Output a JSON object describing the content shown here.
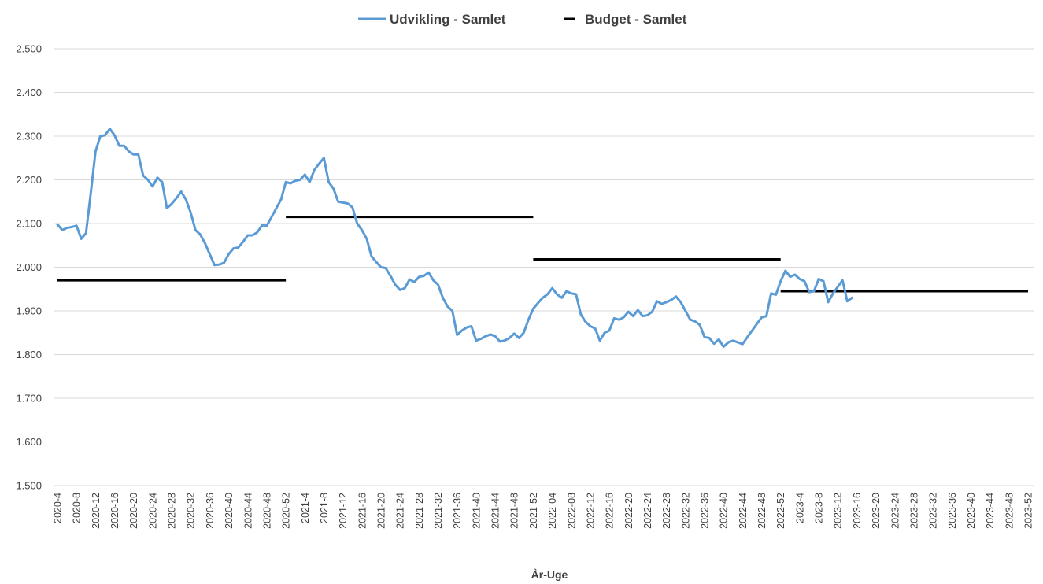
{
  "chart_data": {
    "type": "line",
    "title": "",
    "xlabel": "År-Uge",
    "ylabel": "",
    "ylim": [
      1500,
      2500
    ],
    "y_ticks": [
      "1.500",
      "1.600",
      "1.700",
      "1.800",
      "1.900",
      "2.000",
      "2.100",
      "2.200",
      "2.300",
      "2.400",
      "2.500"
    ],
    "x_start_week": "2020-4",
    "x_ticks": [
      "2020-4",
      "2020-8",
      "2020-12",
      "2020-16",
      "2020-20",
      "2020-24",
      "2020-28",
      "2020-32",
      "2020-36",
      "2020-40",
      "2020-44",
      "2020-48",
      "2020-52",
      "2021-4",
      "2021-8",
      "2021-12",
      "2021-16",
      "2021-20",
      "2021-24",
      "2021-28",
      "2021-32",
      "2021-36",
      "2021-40",
      "2021-44",
      "2021-48",
      "2021-52",
      "2022-04",
      "2022-08",
      "2022-12",
      "2022-16",
      "2022-20",
      "2022-24",
      "2022-28",
      "2022-32",
      "2022-36",
      "2022-40",
      "2022-44",
      "2022-48",
      "2022-52",
      "2023-4",
      "2023-8",
      "2023-12",
      "2023-16",
      "2023-20",
      "2023-24",
      "2023-28",
      "2023-32",
      "2023-36",
      "2023-40",
      "2023-44",
      "2023-48",
      "2023-52"
    ],
    "grid": "horizontal",
    "legend_position": "top-center",
    "series": [
      {
        "name": "Udvikling - Samlet",
        "color": "#5B9BD5",
        "style": "line",
        "values": [
          2098,
          2085,
          2090,
          2092,
          2095,
          2065,
          2078,
          2170,
          2265,
          2300,
          2302,
          2317,
          2302,
          2278,
          2278,
          2265,
          2258,
          2258,
          2210,
          2200,
          2185,
          2205,
          2195,
          2135,
          2145,
          2158,
          2173,
          2155,
          2125,
          2085,
          2075,
          2055,
          2030,
          2005,
          2006,
          2010,
          2030,
          2043,
          2045,
          2058,
          2073,
          2073,
          2080,
          2096,
          2095,
          2115,
          2135,
          2155,
          2195,
          2192,
          2198,
          2200,
          2212,
          2195,
          2223,
          2237,
          2250,
          2195,
          2180,
          2150,
          2148,
          2146,
          2137,
          2100,
          2085,
          2065,
          2025,
          2012,
          2000,
          1998,
          1980,
          1960,
          1948,
          1952,
          1972,
          1966,
          1978,
          1980,
          1988,
          1970,
          1960,
          1930,
          1910,
          1900,
          1845,
          1855,
          1862,
          1865,
          1832,
          1836,
          1842,
          1846,
          1842,
          1830,
          1832,
          1838,
          1848,
          1838,
          1850,
          1880,
          1905,
          1918,
          1930,
          1938,
          1952,
          1938,
          1930,
          1945,
          1940,
          1938,
          1892,
          1875,
          1865,
          1860,
          1832,
          1850,
          1855,
          1883,
          1880,
          1885,
          1898,
          1888,
          1902,
          1888,
          1890,
          1898,
          1922,
          1916,
          1920,
          1925,
          1933,
          1920,
          1900,
          1880,
          1876,
          1868,
          1840,
          1838,
          1825,
          1835,
          1818,
          1828,
          1832,
          1828,
          1824,
          1840,
          1855,
          1870,
          1885,
          1888,
          1940,
          1937,
          1968,
          1992,
          1978,
          1983,
          1973,
          1968,
          1943,
          1945,
          1973,
          1968,
          1920,
          1940,
          1955,
          1970,
          1922,
          1930
        ]
      },
      {
        "name": "Budget - Samlet",
        "color": "#000000",
        "style": "step",
        "segments": [
          {
            "from": "2020-4",
            "to": "2020-52",
            "value": 1970
          },
          {
            "from": "2020-52",
            "to": "2021-52",
            "value": 2115
          },
          {
            "from": "2021-52",
            "to": "2022-52",
            "value": 2018
          },
          {
            "from": "2022-52",
            "to": "2023-52",
            "value": 1945
          }
        ]
      }
    ]
  }
}
